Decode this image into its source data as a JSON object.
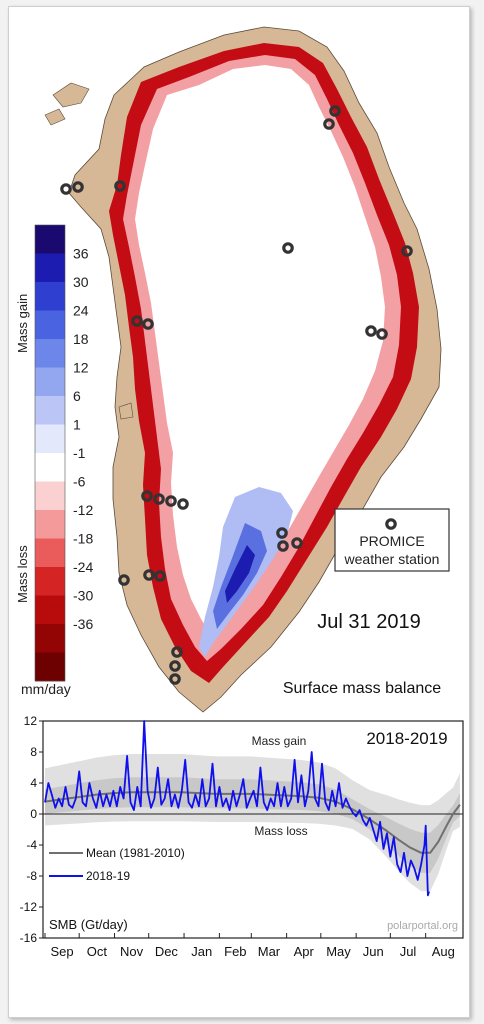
{
  "map": {
    "date": "Jul 31 2019",
    "caption": "Surface mass balance",
    "colorbar": {
      "gain_label": "Mass gain",
      "loss_label": "Mass loss",
      "unit": "mm/day",
      "ticks": [
        "36",
        "30",
        "24",
        "18",
        "12",
        "6",
        "1",
        "-1",
        "-6",
        "-12",
        "-18",
        "-24",
        "-30",
        "-36"
      ],
      "colors": [
        "#1a0a70",
        "#1c1cb0",
        "#2f3fd0",
        "#4a63e0",
        "#6c86ea",
        "#93a6f0",
        "#bcc6f6",
        "#e4e8fb",
        "#ffffff",
        "#fbd0d0",
        "#f59a9a",
        "#ea5c5c",
        "#d42424",
        "#b80c0c",
        "#930404",
        "#6d0000"
      ]
    },
    "legend": {
      "line1": "PROMICE",
      "line2": "weather station"
    }
  },
  "chart_data": {
    "type": "line",
    "title": "2018-2019",
    "ylabel": "SMB (Gt/day)",
    "ylim": [
      -16,
      12
    ],
    "yticks": [
      12,
      8,
      4,
      0,
      -4,
      -8,
      -12,
      -16
    ],
    "xticks": [
      "Sep",
      "Oct",
      "Nov",
      "Dec",
      "Jan",
      "Feb",
      "Mar",
      "Apr",
      "May",
      "Jun",
      "Jul",
      "Aug"
    ],
    "annotations": {
      "gain": "Mass gain",
      "loss": "Mass loss",
      "credit": "polarportal.org"
    },
    "series": [
      {
        "name": "Mean (1981-2010)",
        "color": "#707070",
        "x": [
          0,
          15,
          30,
          45,
          60,
          75,
          90,
          105,
          120,
          135,
          150,
          165,
          180,
          195,
          210,
          225,
          240,
          255,
          270,
          285,
          300,
          310,
          320,
          330,
          338,
          345,
          352,
          358,
          364
        ],
        "y": [
          1.6,
          1.9,
          2.2,
          2.5,
          2.7,
          2.8,
          2.8,
          2.8,
          2.8,
          2.7,
          2.6,
          2.6,
          2.6,
          2.5,
          2.4,
          2.3,
          2.1,
          1.6,
          0.6,
          -0.7,
          -2.2,
          -3.3,
          -4.3,
          -5.0,
          -5.0,
          -3.6,
          -1.6,
          0.0,
          1.2
        ]
      },
      {
        "name": "2018-19",
        "color": "#1010ee",
        "x": [
          0,
          3,
          6,
          9,
          12,
          15,
          18,
          21,
          24,
          27,
          30,
          33,
          36,
          39,
          42,
          45,
          48,
          51,
          54,
          57,
          60,
          63,
          66,
          69,
          72,
          75,
          78,
          81,
          84,
          87,
          90,
          93,
          96,
          99,
          102,
          105,
          108,
          111,
          114,
          117,
          120,
          123,
          126,
          129,
          132,
          135,
          138,
          141,
          144,
          147,
          150,
          153,
          156,
          159,
          162,
          165,
          168,
          171,
          174,
          177,
          180,
          183,
          186,
          189,
          192,
          195,
          198,
          201,
          204,
          207,
          210,
          213,
          216,
          219,
          222,
          225,
          228,
          231,
          234,
          237,
          240,
          243,
          246,
          249,
          252,
          255,
          258,
          261,
          264,
          267,
          270,
          273,
          276,
          279,
          282,
          285,
          288,
          291,
          294,
          297,
          300,
          303,
          306,
          309,
          312,
          315,
          318,
          321,
          324,
          327,
          330,
          333,
          334,
          336,
          337
        ],
        "y": [
          1.5,
          4.0,
          2.5,
          0.8,
          2.0,
          1.0,
          3.5,
          1.2,
          0.8,
          2.0,
          5.5,
          1.5,
          1.0,
          4.0,
          2.0,
          0.8,
          3.0,
          1.0,
          2.5,
          1.0,
          3.0,
          1.0,
          3.5,
          2.0,
          7.5,
          1.5,
          0.5,
          3.5,
          1.0,
          12.0,
          3.0,
          0.8,
          2.0,
          6.0,
          1.2,
          2.0,
          4.5,
          1.0,
          2.5,
          0.8,
          3.0,
          7.0,
          1.5,
          0.8,
          2.5,
          1.0,
          4.5,
          1.0,
          2.0,
          6.5,
          1.0,
          3.5,
          1.0,
          2.0,
          0.5,
          3.0,
          1.0,
          2.5,
          4.5,
          0.8,
          2.0,
          3.0,
          1.0,
          6.0,
          1.5,
          0.5,
          2.0,
          1.0,
          4.0,
          1.0,
          3.5,
          1.0,
          2.0,
          7.0,
          1.5,
          5.0,
          1.0,
          3.0,
          8.0,
          2.0,
          1.0,
          6.5,
          1.5,
          0.5,
          3.0,
          1.0,
          4.0,
          0.8,
          2.0,
          1.0,
          0.2,
          -0.3,
          0.5,
          -0.8,
          -1.5,
          -0.5,
          -2.0,
          -3.5,
          -1.0,
          -4.5,
          -2.5,
          -5.5,
          -3.0,
          -6.5,
          -7.5,
          -5.0,
          -8.0,
          -6.0,
          -7.0,
          -8.5,
          -6.5,
          -4.0,
          -1.5,
          -10.5,
          -10.0
        ]
      }
    ]
  }
}
